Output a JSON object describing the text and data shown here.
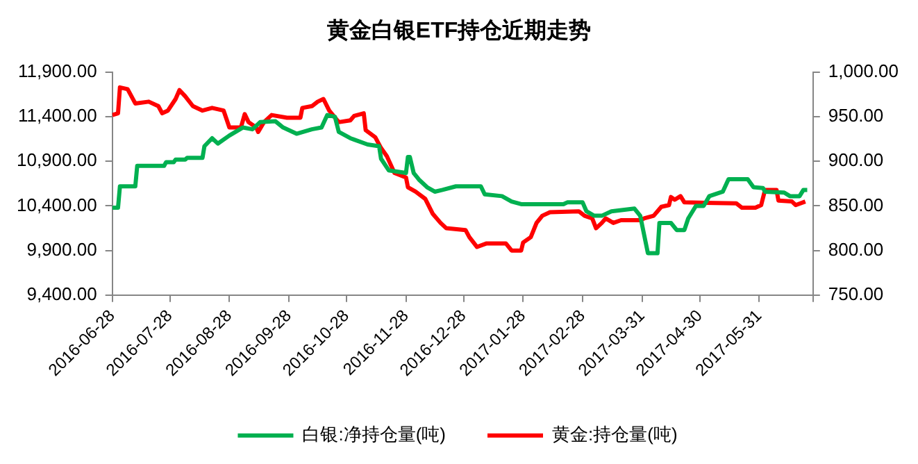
{
  "chart_data": {
    "type": "line",
    "title": "黄金白银ETF持仓近期走势",
    "legend": "bottom",
    "marker": "none",
    "xlim": [
      "2016-06-28",
      "2017-06-28"
    ],
    "xticks": [
      "2016-06-28",
      "2016-07-28",
      "2016-08-28",
      "2016-09-28",
      "2016-10-28",
      "2016-11-28",
      "2016-12-28",
      "2017-01-28",
      "2017-02-28",
      "2017-03-31",
      "2017-04-30",
      "2017-05-31",
      {
        "value": "2017-06-28",
        "label": null
      }
    ],
    "ylim": [
      9400,
      11900
    ],
    "yticks": [
      {
        "value": 9400,
        "label": "9,400.00"
      },
      {
        "value": 9900,
        "label": "9,900.00"
      },
      {
        "value": 10400,
        "label": "10,400.00"
      },
      {
        "value": 10900,
        "label": "10,900.00"
      },
      {
        "value": 11400,
        "label": "11,400.00"
      },
      {
        "value": 11900,
        "label": "11,900.00"
      }
    ],
    "y2lim": [
      750,
      1000
    ],
    "y2ticks": [
      {
        "value": 750,
        "label": "750.00"
      },
      {
        "value": 800,
        "label": "800.00"
      },
      {
        "value": 850,
        "label": "850.00"
      },
      {
        "value": 900,
        "label": "900.00"
      },
      {
        "value": 950,
        "label": "950.00"
      },
      {
        "value": 1000,
        "label": "1,000.00"
      }
    ],
    "series": [
      {
        "name": "白银:净持仓量(吨)",
        "color": "#00b050",
        "x": [
          "2016-06-28",
          "2016-07-01",
          "2016-07-02",
          "2016-07-10",
          "2016-07-11",
          "2016-07-25",
          "2016-07-26",
          "2016-07-30",
          "2016-07-31",
          "2016-08-05",
          "2016-08-06",
          "2016-08-14",
          "2016-08-15",
          "2016-08-19",
          "2016-08-22",
          "2016-08-28",
          "2016-09-04",
          "2016-09-09",
          "2016-09-13",
          "2016-09-21",
          "2016-09-25",
          "2016-10-02",
          "2016-10-10",
          "2016-10-15",
          "2016-10-18",
          "2016-10-22",
          "2016-10-24",
          "2016-10-30",
          "2016-11-08",
          "2016-11-14",
          "2016-11-15",
          "2016-11-19",
          "2016-11-28",
          "2016-11-29",
          "2016-11-30",
          "2016-12-02",
          "2016-12-05",
          "2016-12-09",
          "2016-12-13",
          "2016-12-17",
          "2016-12-24",
          "2017-01-06",
          "2017-01-08",
          "2017-01-17",
          "2017-01-22",
          "2017-01-27",
          "2017-02-18",
          "2017-02-20",
          "2017-02-28",
          "2017-03-02",
          "2017-03-06",
          "2017-03-10",
          "2017-03-15",
          "2017-03-27",
          "2017-03-30",
          "2017-04-03",
          "2017-04-08",
          "2017-04-09",
          "2017-04-15",
          "2017-04-18",
          "2017-04-22",
          "2017-04-24",
          "2017-04-28",
          "2017-05-02",
          "2017-05-05",
          "2017-05-12",
          "2017-05-15",
          "2017-05-25",
          "2017-05-28",
          "2017-06-02",
          "2017-06-03",
          "2017-06-13",
          "2017-06-16",
          "2017-06-21",
          "2017-06-23",
          "2017-06-25"
        ],
        "values": [
          10380,
          10380,
          10620,
          10620,
          10850,
          10850,
          10890,
          10890,
          10920,
          10920,
          10940,
          10940,
          11070,
          11160,
          11100,
          11190,
          11280,
          11260,
          11340,
          11350,
          11280,
          11210,
          11260,
          11280,
          11420,
          11400,
          11230,
          11160,
          11090,
          11070,
          10930,
          10800,
          10770,
          10950,
          10950,
          10770,
          10690,
          10610,
          10560,
          10580,
          10620,
          10620,
          10530,
          10510,
          10450,
          10420,
          10420,
          10440,
          10440,
          10340,
          10290,
          10290,
          10340,
          10370,
          10290,
          9870,
          9870,
          10210,
          10210,
          10130,
          10130,
          10260,
          10400,
          10400,
          10510,
          10560,
          10700,
          10700,
          10610,
          10600,
          10560,
          10550,
          10510,
          10510,
          10580,
          10580
        ]
      },
      {
        "name": "黄金:持仓量(吨)",
        "color": "#ff0000",
        "axis": "y2",
        "x": [
          "2016-06-28",
          "2016-07-01",
          "2016-07-02",
          "2016-07-06",
          "2016-07-10",
          "2016-07-17",
          "2016-07-22",
          "2016-07-24",
          "2016-07-27",
          "2016-07-31",
          "2016-08-02",
          "2016-08-05",
          "2016-08-09",
          "2016-08-14",
          "2016-08-19",
          "2016-08-25",
          "2016-08-28",
          "2016-09-03",
          "2016-09-05",
          "2016-09-07",
          "2016-09-11",
          "2016-09-12",
          "2016-09-15",
          "2016-09-19",
          "2016-09-27",
          "2016-10-04",
          "2016-10-05",
          "2016-10-10",
          "2016-10-13",
          "2016-10-16",
          "2016-10-19",
          "2016-10-24",
          "2016-10-30",
          "2016-11-01",
          "2016-11-06",
          "2016-11-07",
          "2016-11-12",
          "2016-11-15",
          "2016-11-18",
          "2016-11-22",
          "2016-11-28",
          "2016-11-29",
          "2016-12-03",
          "2016-12-08",
          "2016-12-12",
          "2016-12-16",
          "2016-12-19",
          "2016-12-29",
          "2016-12-31",
          "2017-01-04",
          "2017-01-09",
          "2017-01-19",
          "2017-01-22",
          "2017-01-27",
          "2017-01-28",
          "2017-02-01",
          "2017-02-04",
          "2017-02-07",
          "2017-02-11",
          "2017-02-26",
          "2017-03-01",
          "2017-03-05",
          "2017-03-07",
          "2017-03-10",
          "2017-03-12",
          "2017-03-16",
          "2017-03-20",
          "2017-03-30",
          "2017-04-01",
          "2017-04-06",
          "2017-04-10",
          "2017-04-14",
          "2017-04-15",
          "2017-04-17",
          "2017-04-20",
          "2017-04-22",
          "2017-05-19",
          "2017-05-22",
          "2017-05-29",
          "2017-06-01",
          "2017-06-03",
          "2017-06-09",
          "2017-06-10",
          "2017-06-17",
          "2017-06-19",
          "2017-06-24"
        ],
        "values": [
          952,
          954,
          983,
          981,
          965,
          967,
          962,
          954,
          957,
          970,
          980,
          973,
          962,
          957,
          960,
          957,
          938,
          938,
          953,
          944,
          938,
          933,
          944,
          952,
          949,
          949,
          960,
          962,
          967,
          970,
          957,
          944,
          946,
          951,
          954,
          935,
          927,
          915,
          906,
          887,
          882,
          871,
          866,
          858,
          841,
          831,
          825,
          823,
          815,
          804,
          808,
          808,
          800,
          800,
          809,
          815,
          831,
          839,
          843,
          844,
          839,
          836,
          825,
          831,
          836,
          831,
          834,
          834,
          836,
          839,
          849,
          851,
          860,
          857,
          861,
          854,
          853,
          848,
          848,
          851,
          868,
          868,
          856,
          855,
          851,
          855
        ]
      }
    ]
  }
}
